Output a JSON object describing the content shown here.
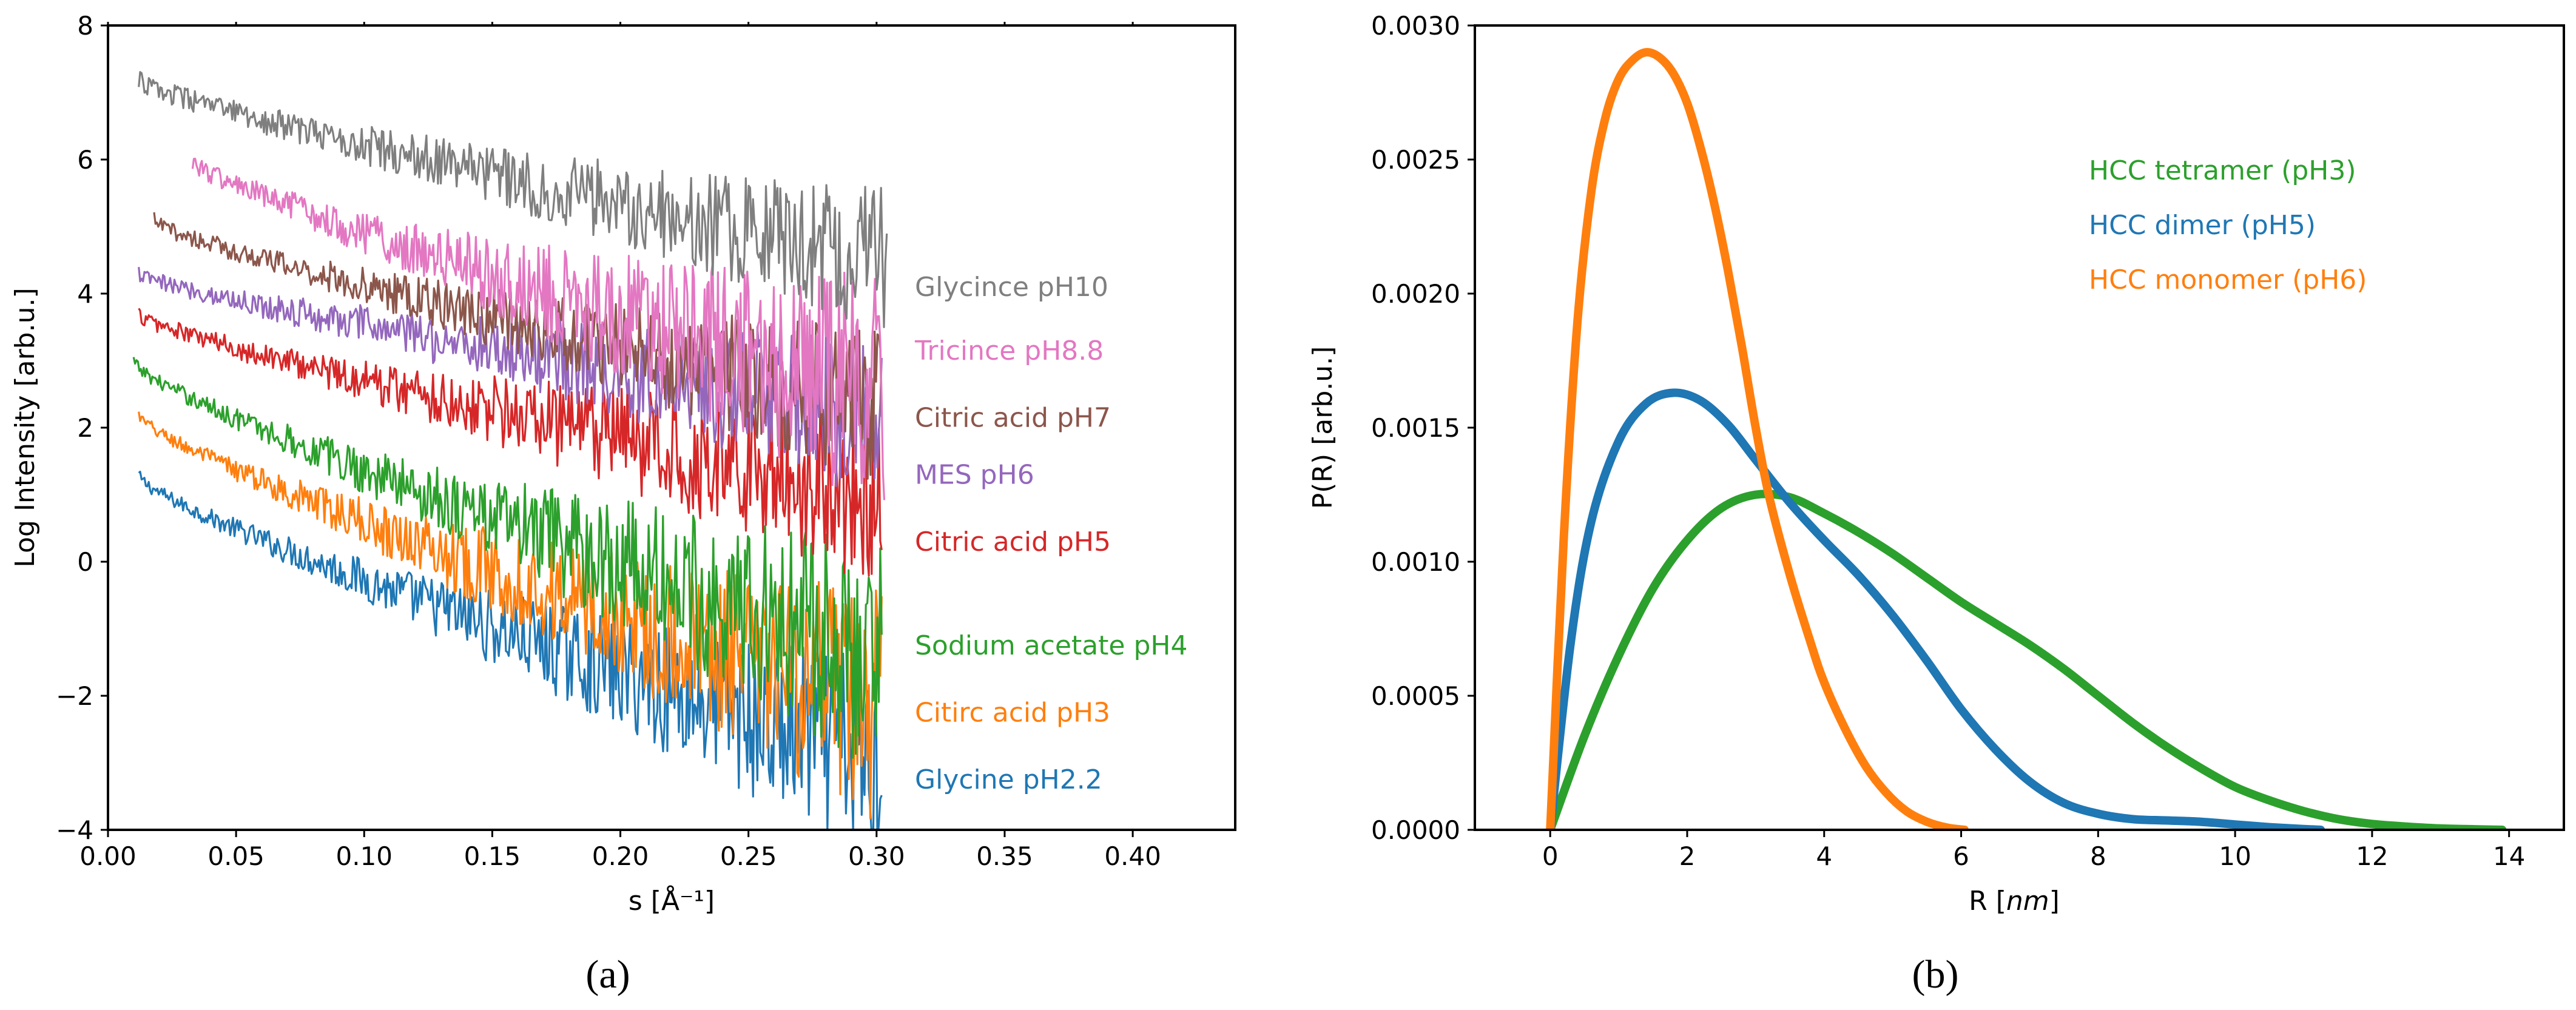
{
  "chart_data": [
    {
      "panel_label": "(a)",
      "type": "line",
      "xlabel": "s [Å⁻¹]",
      "ylabel": "Log Intensity [arb.u.]",
      "xlim": [
        0.0,
        0.44
      ],
      "ylim": [
        -4,
        8
      ],
      "xticks": [
        0.0,
        0.05,
        0.1,
        0.15,
        0.2,
        0.25,
        0.3,
        0.35,
        0.4
      ],
      "xtick_labels": [
        "0.00",
        "0.05",
        "0.10",
        "0.15",
        "0.20",
        "0.25",
        "0.30",
        "0.35",
        "0.40"
      ],
      "yticks": [
        -4,
        -2,
        0,
        2,
        4,
        6,
        8
      ],
      "ytick_labels": [
        "−4",
        "−2",
        "0",
        "2",
        "4",
        "6",
        "8"
      ],
      "series": [
        {
          "name": "Glycince pH10",
          "color": "#7f7f7f",
          "x_start": 0.012,
          "y_start": 7.2,
          "x_end": 0.304,
          "y_end": 4.5,
          "noise_start": 0.15,
          "noise_end": 1.1
        },
        {
          "name": "Tricince pH8.8",
          "color": "#e377c2",
          "x_start": 0.033,
          "y_start": 6.0,
          "x_end": 0.303,
          "y_end": 2.5,
          "noise_start": 0.15,
          "noise_end": 1.8
        },
        {
          "name": "Citric acid pH7",
          "color": "#8c564b",
          "x_start": 0.018,
          "y_start": 5.1,
          "x_end": 0.302,
          "y_end": 2.3,
          "noise_start": 0.12,
          "noise_end": 1.2
        },
        {
          "name": "MES pH6",
          "color": "#9467bd",
          "x_start": 0.012,
          "y_start": 4.3,
          "x_end": 0.302,
          "y_end": 2.2,
          "noise_start": 0.12,
          "noise_end": 1.3
        },
        {
          "name": "Citric acid pH5",
          "color": "#d62728",
          "x_start": 0.012,
          "y_start": 3.7,
          "x_end": 0.302,
          "y_end": 1.0,
          "noise_start": 0.12,
          "noise_end": 1.4
        },
        {
          "name": "Sodium acetate pH4",
          "color": "#2ca02c",
          "x_start": 0.01,
          "y_start": 3.0,
          "x_end": 0.302,
          "y_end": -1.4,
          "noise_start": 0.1,
          "noise_end": 1.8
        },
        {
          "name": "Citirc acid pH3",
          "color": "#ff7f0e",
          "x_start": 0.012,
          "y_start": 2.2,
          "x_end": 0.302,
          "y_end": -2.2,
          "noise_start": 0.1,
          "noise_end": 1.8
        },
        {
          "name": "Glycine pH2.2",
          "color": "#1f77b4",
          "x_start": 0.012,
          "y_start": 1.3,
          "x_end": 0.302,
          "y_end": -3.0,
          "noise_start": 0.1,
          "noise_end": 1.6
        }
      ],
      "labels": [
        {
          "text": "Glycince pH10",
          "color": "#7f7f7f",
          "y": 4.1
        },
        {
          "text": "Tricince pH8.8",
          "color": "#e377c2",
          "y": 3.15
        },
        {
          "text": "Citric acid pH7",
          "color": "#8c564b",
          "y": 2.15
        },
        {
          "text": "MES pH6",
          "color": "#9467bd",
          "y": 1.3
        },
        {
          "text": "Citric acid pH5",
          "color": "#d62728",
          "y": 0.3
        },
        {
          "text": "Sodium acetate pH4",
          "color": "#2ca02c",
          "y": -1.25
        },
        {
          "text": "Citirc acid pH3",
          "color": "#ff7f0e",
          "y": -2.25
        },
        {
          "text": "Glycine pH2.2",
          "color": "#1f77b4",
          "y": -3.25
        }
      ]
    },
    {
      "panel_label": "(b)",
      "type": "line",
      "xlabel": "R [nm]",
      "xlabel_plain": "R [",
      "xlabel_unit": "nm",
      "xlabel_end": "]",
      "ylabel": "P(R) [arb.u.]",
      "xlim": [
        -1.1,
        14.8
      ],
      "ylim": [
        0.0,
        0.003
      ],
      "xticks": [
        0,
        2,
        4,
        6,
        8,
        10,
        12,
        14
      ],
      "xtick_labels": [
        "0",
        "2",
        "4",
        "6",
        "8",
        "10",
        "12",
        "14"
      ],
      "yticks": [
        0.0,
        0.0005,
        0.001,
        0.0015,
        0.002,
        0.0025,
        0.003
      ],
      "ytick_labels": [
        "0.0000",
        "0.0005",
        "0.0010",
        "0.0015",
        "0.0020",
        "0.0025",
        "0.0030"
      ],
      "legend_position": "upper-right",
      "series": [
        {
          "name": "HCC tetramer (pH3)",
          "color": "#2ca02c",
          "x": [
            0,
            0.5,
            1,
            1.5,
            2,
            2.5,
            3,
            3.5,
            4,
            4.5,
            5,
            5.5,
            6,
            6.5,
            7,
            7.5,
            8,
            8.5,
            9,
            9.5,
            10,
            10.5,
            11,
            11.5,
            12,
            12.5,
            13,
            13.5,
            13.9
          ],
          "y": [
            0,
            0.00035,
            0.00065,
            0.0009,
            0.00108,
            0.0012,
            0.00125,
            0.00124,
            0.00118,
            0.00111,
            0.00103,
            0.00094,
            0.00085,
            0.00077,
            0.00069,
            0.0006,
            0.0005,
            0.0004,
            0.00031,
            0.00023,
            0.00016,
            0.00011,
            7e-05,
            4e-05,
            2.2e-05,
            1.2e-05,
            5e-06,
            2e-06,
            0
          ]
        },
        {
          "name": "HCC dimer (pH5)",
          "color": "#1f77b4",
          "x": [
            0,
            0.3,
            0.6,
            1,
            1.4,
            1.8,
            2.2,
            2.6,
            3,
            3.5,
            4,
            4.5,
            5,
            5.5,
            6,
            6.5,
            7,
            7.5,
            8,
            8.5,
            9,
            9.5,
            10,
            10.5,
            11,
            11.25
          ],
          "y": [
            0,
            0.0007,
            0.00115,
            0.00145,
            0.00159,
            0.00163,
            0.0016,
            0.00151,
            0.00138,
            0.00122,
            0.00108,
            0.00095,
            0.0008,
            0.00063,
            0.00045,
            0.0003,
            0.00018,
            0.0001,
            6e-05,
            4e-05,
            3.5e-05,
            3e-05,
            2e-05,
            1e-05,
            3e-06,
            0
          ]
        },
        {
          "name": "HCC monomer (pH6)",
          "color": "#ff7f0e",
          "x": [
            0,
            0.2,
            0.4,
            0.6,
            0.8,
            1,
            1.2,
            1.4,
            1.6,
            1.8,
            2,
            2.2,
            2.4,
            2.6,
            2.8,
            3,
            3.2,
            3.5,
            3.8,
            4,
            4.3,
            4.6,
            4.9,
            5.2,
            5.5,
            5.8,
            6.05
          ],
          "y": [
            0,
            0.0011,
            0.0019,
            0.00238,
            0.00265,
            0.0028,
            0.00287,
            0.0029,
            0.00288,
            0.00282,
            0.00271,
            0.00254,
            0.00233,
            0.00208,
            0.0018,
            0.0015,
            0.00124,
            0.00095,
            0.0007,
            0.00055,
            0.00038,
            0.00024,
            0.00014,
            7e-05,
            3e-05,
            8e-06,
            0
          ]
        }
      ],
      "legend": [
        {
          "text": "HCC tetramer (pH3)",
          "color": "#2ca02c"
        },
        {
          "text": "HCC dimer (pH5)",
          "color": "#1f77b4"
        },
        {
          "text": "HCC monomer (pH6)",
          "color": "#ff7f0e"
        }
      ]
    }
  ]
}
